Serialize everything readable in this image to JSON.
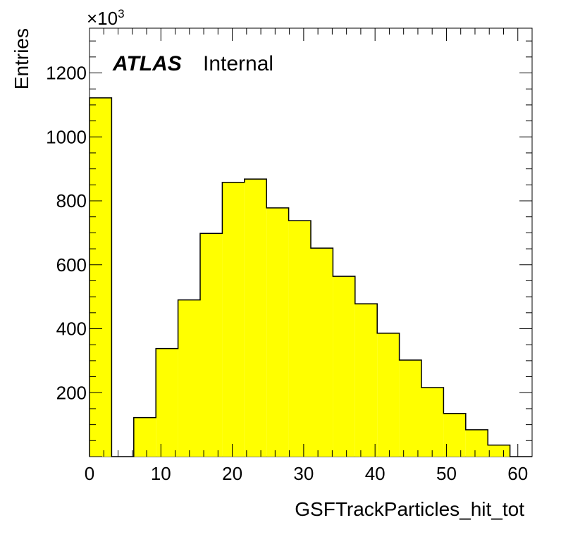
{
  "chart_data": {
    "type": "bar",
    "histogram": true,
    "xlabel": "GSFTrackParticles_hit_tot",
    "ylabel": "Entries",
    "y_scale_label": "×10",
    "y_scale_exponent": "3",
    "xlim": [
      0,
      62
    ],
    "ylim": [
      0,
      1340
    ],
    "x_ticks": [
      0,
      10,
      20,
      30,
      40,
      50,
      60
    ],
    "y_ticks": [
      200,
      400,
      600,
      800,
      1000,
      1200
    ],
    "bin_edges": [
      0,
      3.1,
      6.2,
      9.3,
      12.4,
      15.5,
      18.6,
      21.7,
      24.8,
      27.9,
      31,
      34.1,
      37.2,
      40.3,
      43.4,
      46.5,
      49.6,
      52.7,
      55.8,
      58.9,
      62
    ],
    "values": [
      1122,
      0,
      122,
      338,
      490,
      698,
      858,
      868,
      778,
      738,
      652,
      564,
      478,
      386,
      302,
      216,
      135,
      84,
      36,
      0
    ],
    "fill_color": "#ffff00",
    "line_color": "#000000",
    "grid": false,
    "legend": "none",
    "annotation": {
      "atlas": "ATLAS",
      "internal": "Internal"
    }
  }
}
